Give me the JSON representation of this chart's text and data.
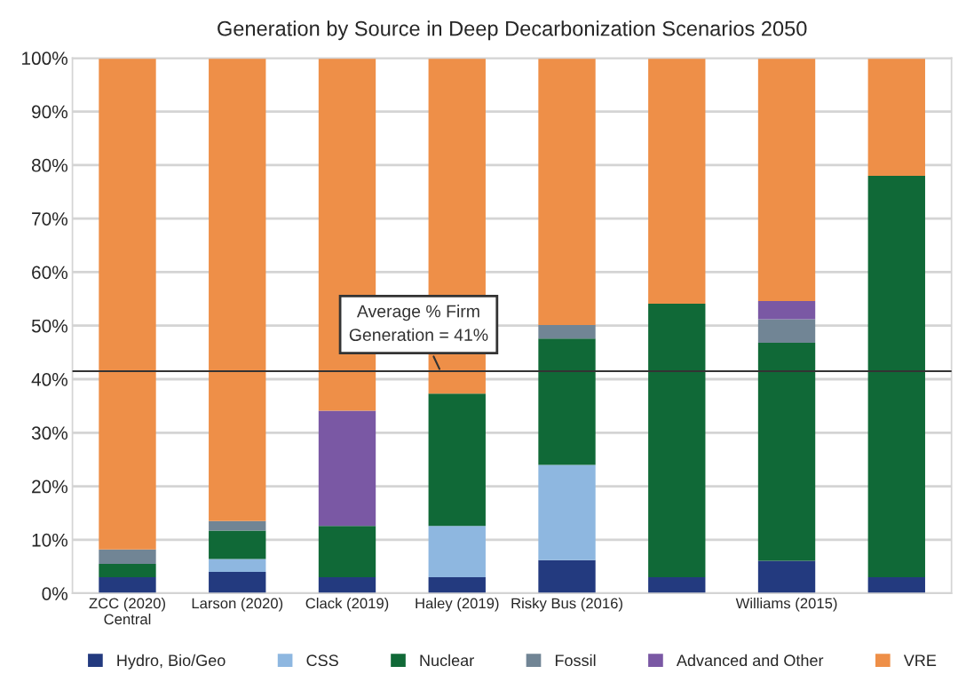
{
  "chart_data": {
    "type": "bar",
    "stacked": true,
    "title": "Generation by Source in Deep Decarbonization Scenarios 2050",
    "categories": [
      "ZCC (2020)\nCentral",
      "Larson (2020)",
      "Clack (2019)",
      "Haley (2019)",
      "Risky Bus (2016)",
      null,
      "Williams (2015)",
      null
    ],
    "series": [
      {
        "name": "Hydro, Bio/Geo",
        "color": "#233a7f",
        "values": [
          3,
          4,
          3,
          3,
          6.2,
          3,
          6.1,
          3
        ]
      },
      {
        "name": "CSS",
        "color": "#8eb7e0",
        "values": [
          0,
          2.4,
          0,
          9.6,
          17.8,
          0,
          0,
          0
        ]
      },
      {
        "name": "Nuclear",
        "color": "#106937",
        "values": [
          2.5,
          5.3,
          9.6,
          24.7,
          23.6,
          51.1,
          40.7,
          75
        ]
      },
      {
        "name": "Fossil",
        "color": "#718595",
        "values": [
          2.7,
          1.8,
          0,
          0,
          2.5,
          0,
          4.4,
          0
        ]
      },
      {
        "name": "Advanced and Other",
        "color": "#7a58a4",
        "values": [
          0,
          0,
          21.5,
          0,
          0,
          0,
          3.4,
          0
        ]
      },
      {
        "name": "VRE",
        "color": "#ee8f48",
        "values": [
          91.8,
          86.5,
          65.9,
          62.7,
          49.9,
          45.9,
          45.4,
          22
        ]
      }
    ],
    "ylim": [
      0,
      100
    ],
    "yticks": [
      {
        "value": 0,
        "label": "0%"
      },
      {
        "value": 10,
        "label": "10%"
      },
      {
        "value": 20,
        "label": "20%"
      },
      {
        "value": 30,
        "label": "30%"
      },
      {
        "value": 40,
        "label": "40%"
      },
      {
        "value": 50,
        "label": "50%"
      },
      {
        "value": 60,
        "label": "60%"
      },
      {
        "value": 70,
        "label": "70%"
      },
      {
        "value": 80,
        "label": "80%"
      },
      {
        "value": 90,
        "label": "90%"
      },
      {
        "value": 100,
        "label": "100%"
      }
    ],
    "ref_lines": [
      {
        "axis": "y",
        "value": 41.5,
        "label": "Average % Firm\nGeneration = 41%",
        "color": "#333333"
      }
    ],
    "grid": "y",
    "legend": "bottom"
  }
}
